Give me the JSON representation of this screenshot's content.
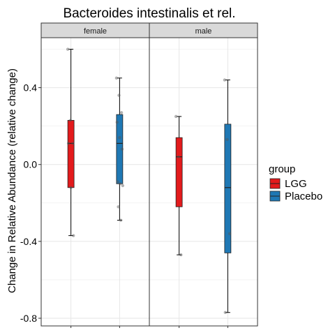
{
  "chart_data": {
    "type": "box",
    "title": "Bacteroides intestinalis et rel.",
    "ylabel": "Change in Relative Abundance (relative change)",
    "xlabel": "",
    "ylim": [
      -0.84,
      0.66
    ],
    "yticks": [
      0.4,
      0.0,
      -0.4,
      -0.8
    ],
    "ytick_labels": [
      "0.4",
      "0.0",
      "-0.4",
      "-0.8"
    ],
    "grid": true,
    "legend": {
      "title": "group",
      "position": "right",
      "items": [
        {
          "label": "LGG",
          "color": "#e31a1c"
        },
        {
          "label": "Placebo",
          "color": "#1f78b4"
        }
      ]
    },
    "facets": [
      {
        "label": "female",
        "boxes": [
          {
            "group": "LGG",
            "min": -0.37,
            "q1": -0.12,
            "median": 0.11,
            "q3": 0.23,
            "max": 0.6,
            "points": [
              0.6,
              0.23,
              0.11,
              0.11,
              -0.12,
              -0.37
            ]
          },
          {
            "group": "Placebo",
            "min": -0.29,
            "q1": -0.1,
            "median": 0.11,
            "q3": 0.26,
            "max": 0.45,
            "points": [
              0.45,
              0.36,
              0.27,
              0.22,
              0.14,
              0.08,
              -0.09,
              -0.1,
              -0.11,
              -0.22,
              -0.29
            ]
          }
        ]
      },
      {
        "label": "male",
        "boxes": [
          {
            "group": "LGG",
            "min": -0.47,
            "q1": -0.22,
            "median": 0.04,
            "q3": 0.14,
            "max": 0.25,
            "points": [
              0.25,
              0.04,
              -0.47
            ]
          },
          {
            "group": "Placebo",
            "min": -0.77,
            "q1": -0.46,
            "median": -0.12,
            "q3": 0.21,
            "max": 0.44,
            "points": [
              0.44,
              0.13,
              -0.36,
              -0.77
            ]
          }
        ]
      }
    ]
  }
}
